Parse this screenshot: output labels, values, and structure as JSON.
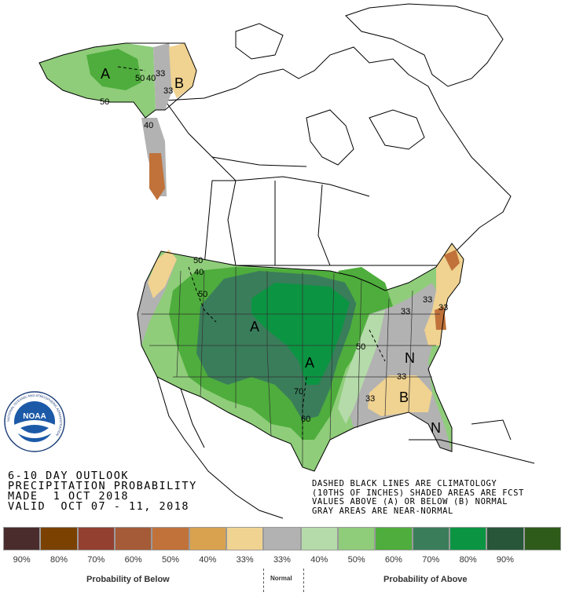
{
  "title_lines": [
    "6-10 DAY OUTLOOK",
    "PRECIPITATION PROBABILITY",
    "MADE  1 OCT 2018",
    "VALID  OCT 07 - 11, 2018"
  ],
  "notes": [
    "DASHED BLACK LINES ARE CLIMATOLOGY",
    "(10THS OF INCHES) SHADED AREAS ARE FCST",
    "VALUES ABOVE (A) OR BELOW (B) NORMAL",
    "GRAY AREAS ARE NEAR-NORMAL"
  ],
  "legend": {
    "colors": [
      "#4a2c2c",
      "#7a4100",
      "#934031",
      "#a55b38",
      "#c0723a",
      "#d9a24f",
      "#f0d291",
      "#b2b2b2",
      "#b4dba9",
      "#8fcd7a",
      "#4ead3c",
      "#3a7d5b",
      "#0b9542",
      "#275639",
      "#2e5b19"
    ],
    "labels": [
      "90%",
      "80%",
      "70%",
      "60%",
      "50%",
      "40%",
      "33%",
      "33%",
      "40%",
      "50%",
      "60%",
      "70%",
      "80%",
      "90%",
      ""
    ],
    "below_label": "Probability of Below",
    "normal_label": "Normal",
    "above_label": "Probability of Above"
  },
  "map_labels": {
    "letters": [
      "A",
      "B",
      "A",
      "A",
      "N",
      "B",
      "N"
    ],
    "contours": [
      "50",
      "40",
      "33",
      "33",
      "50",
      "40",
      "50",
      "50",
      "33",
      "50",
      "70",
      "60",
      "33",
      "33",
      "33",
      "33",
      "40"
    ]
  },
  "logo": {
    "name": "NOAA",
    "ring_text": "NATIONAL OCEANIC AND ATMOSPHERIC ADMINISTRATION"
  }
}
